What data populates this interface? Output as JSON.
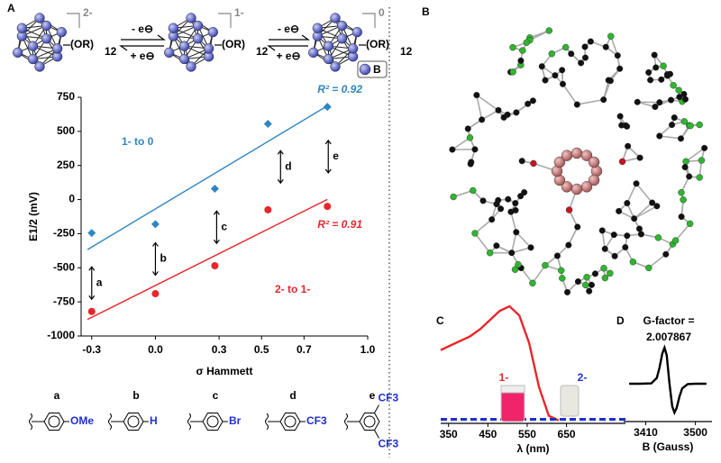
{
  "panel_letters": [
    "A",
    "B",
    "C",
    "D"
  ],
  "scheme": {
    "charges": [
      "2-",
      "1-",
      "0"
    ],
    "ligand": "(OR)",
    "ligand_count": 12,
    "oxidation": "- e⊖",
    "reduction": "+ e⊖",
    "legend": "B"
  },
  "substituents": [
    {
      "letter": "a",
      "groups": [
        "OMe"
      ]
    },
    {
      "letter": "b",
      "groups": [
        "H"
      ]
    },
    {
      "letter": "c",
      "groups": [
        "Br"
      ]
    },
    {
      "letter": "d",
      "groups": [
        "CF3"
      ]
    },
    {
      "letter": "e",
      "groups": [
        "CF3",
        "CF3"
      ]
    }
  ],
  "chart_data": [
    {
      "type": "scatter",
      "x_label": "σ Hammett",
      "y_label": "E1/2 (mV)",
      "x": [
        -0.3,
        0.0,
        0.28,
        0.53,
        0.81
      ],
      "series": [
        {
          "name": "1- to 0",
          "color": "#2e86c1",
          "marker": "diamond",
          "values": [
            -245,
            -180,
            80,
            555,
            680
          ],
          "fit_label": "R² = 0.92"
        },
        {
          "name": "2- to 1-",
          "color": "#e8262a",
          "marker": "circle",
          "values": [
            -820,
            -690,
            -485,
            -75,
            -50
          ],
          "fit_label": "R² = 0.91"
        }
      ],
      "xlim": [
        -0.35,
        1.0
      ],
      "xticks": [
        -0.3,
        {
          "value": 0.0,
          "label": "0.0"
        },
        0.3,
        0.5,
        0.7,
        {
          "value": 1.0,
          "label": "1.0"
        }
      ],
      "ylim": [
        -1000,
        750
      ],
      "yticks": [
        -1000,
        -750,
        -500,
        -250,
        0,
        250,
        500,
        750
      ]
    },
    {
      "type": "line",
      "x_label": "λ (nm)",
      "series": [
        {
          "name": "1-",
          "color": "#e8262a",
          "dash": false,
          "x": [
            330,
            355,
            380,
            405,
            430,
            455,
            480,
            505,
            530,
            555,
            580,
            605,
            630
          ],
          "values": [
            0.62,
            0.66,
            0.7,
            0.74,
            0.8,
            0.88,
            0.96,
            1.0,
            0.92,
            0.68,
            0.3,
            0.05,
            0.01
          ]
        },
        {
          "name": "2-",
          "color": "#1f2fd0",
          "dash": true,
          "x": [
            330,
            400,
            500,
            600,
            700,
            800
          ],
          "values": [
            0.02,
            0.02,
            0.02,
            0.02,
            0.02,
            0.02
          ]
        }
      ],
      "xlim": [
        330,
        800
      ],
      "xticks": [
        350,
        450,
        550,
        650
      ],
      "ylim": [
        0,
        1
      ]
    },
    {
      "type": "line",
      "title": "G-factor =",
      "subtitle": "2.007867",
      "x_label": "B (Gauss)",
      "series": [
        {
          "color": "#000000",
          "dash": false,
          "x": [
            3380,
            3400,
            3420,
            3430,
            3435,
            3440,
            3444,
            3448,
            3453,
            3458,
            3462,
            3466,
            3471,
            3476,
            3486,
            3500,
            3520
          ],
          "values": [
            0,
            0,
            0.01,
            0.16,
            0.45,
            0.84,
            1.0,
            0.79,
            0,
            -0.63,
            -0.8,
            -0.67,
            -0.36,
            -0.13,
            -0.01,
            0,
            0
          ]
        }
      ],
      "xlim": [
        3370,
        3530
      ],
      "xticks": [
        3410,
        3500
      ],
      "ylim": [
        -0.8,
        1
      ]
    }
  ]
}
